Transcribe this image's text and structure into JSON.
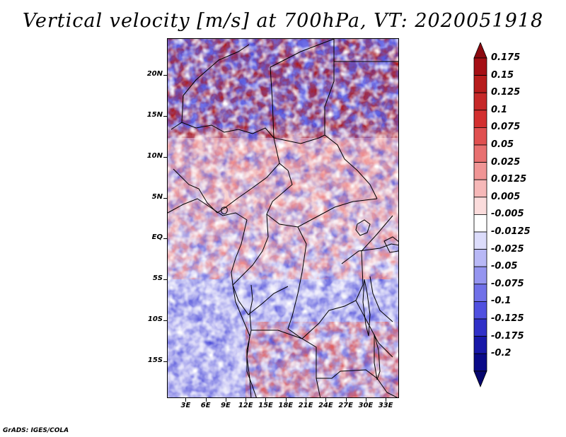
{
  "title": "Vertical velocity [m/s] at 700hPa, VT: 2020051918",
  "footer": "GrADS: IGES/COLA",
  "map": {
    "lat_labels": [
      "20N",
      "15N",
      "10N",
      "5N",
      "EQ",
      "5S",
      "10S",
      "15S"
    ],
    "lat_values": [
      20,
      15,
      10,
      5,
      0,
      -5,
      -10,
      -15
    ],
    "lon_labels": [
      "3E",
      "6E",
      "9E",
      "12E",
      "15E",
      "18E",
      "21E",
      "24E",
      "27E",
      "30E",
      "33E"
    ],
    "lon_values": [
      3,
      6,
      9,
      12,
      15,
      18,
      21,
      24,
      27,
      30,
      33
    ],
    "lat_range": [
      -19.5,
      24.5
    ],
    "lon_range": [
      0.2,
      35
    ]
  },
  "colorbar": {
    "labels": [
      "0.175",
      "0.15",
      "0.125",
      "0.1",
      "0.075",
      "0.05",
      "0.025",
      "0.0125",
      "0.005",
      "-0.005",
      "-0.0125",
      "-0.025",
      "-0.05",
      "-0.075",
      "-0.1",
      "-0.125",
      "-0.175",
      "-0.2"
    ],
    "colors": [
      "#a50f15",
      "#b71c1c",
      "#c62828",
      "#d32f2f",
      "#e05050",
      "#e87070",
      "#f09595",
      "#f6b8b8",
      "#fbdcdc",
      "#ffffff",
      "#dcdcfb",
      "#b8b8f6",
      "#9595f0",
      "#7070e8",
      "#5050e0",
      "#3030c8",
      "#1818a8",
      "#0a0a88"
    ],
    "top_cap_color": "#8b0a10",
    "bottom_cap_color": "#06066e"
  }
}
